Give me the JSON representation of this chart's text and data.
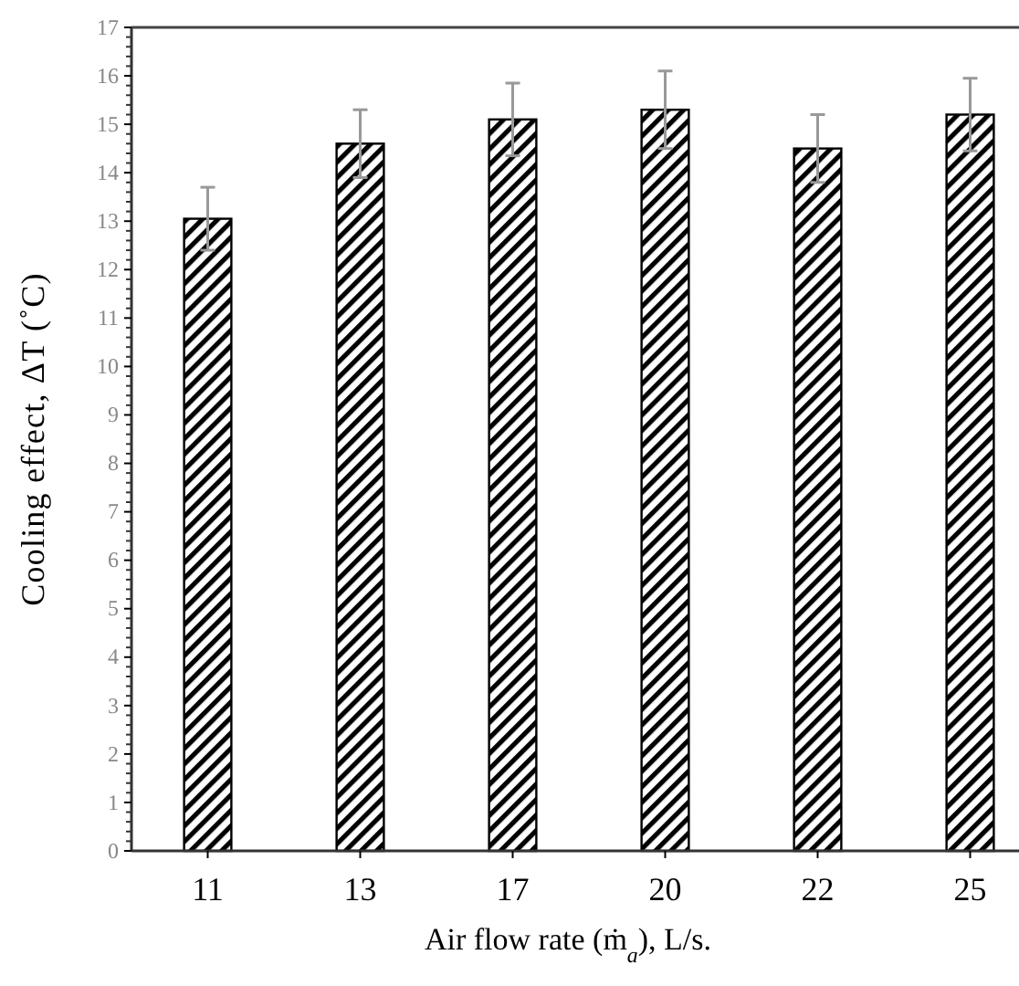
{
  "chart_data": {
    "type": "bar",
    "xlabel": "Air flow rate (ṁ$_{a}$), L/s.",
    "ylabel": "Cooling effect, ΔT (˚C)",
    "categories": [
      "11",
      "13",
      "17",
      "20",
      "22",
      "25"
    ],
    "series": [
      {
        "color": "#000000",
        "values": [
          13.05,
          14.6,
          15.1,
          15.3,
          14.5,
          15.2
        ],
        "errors": [
          0.65,
          0.7,
          0.75,
          0.8,
          0.7,
          0.75
        ]
      }
    ],
    "ylim": [
      0,
      17
    ],
    "yticks": [
      0,
      1,
      2,
      3,
      4,
      5,
      6,
      7,
      8,
      9,
      10,
      11,
      12,
      13,
      14,
      15,
      16,
      17
    ]
  }
}
